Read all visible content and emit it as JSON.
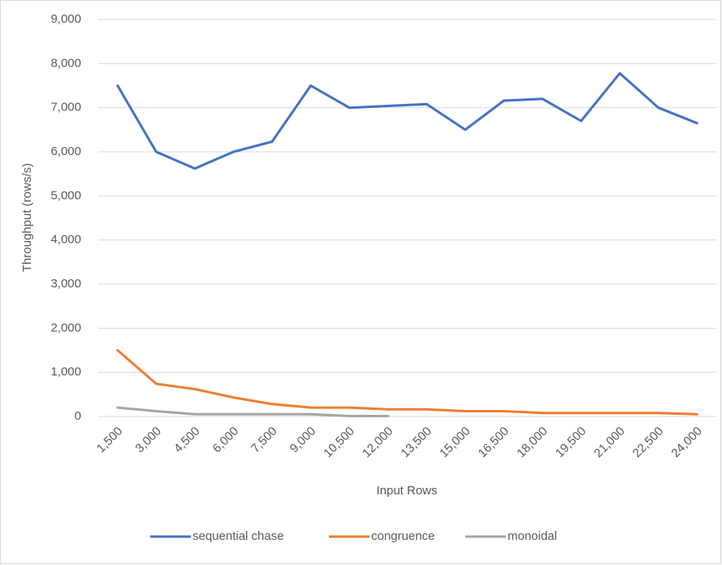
{
  "chart_data": {
    "type": "line",
    "categories": [
      "1,500",
      "3,000",
      "4,500",
      "6,000",
      "7,500",
      "9,000",
      "10,500",
      "12,000",
      "13,500",
      "15,000",
      "16,500",
      "18,000",
      "19,500",
      "21,000",
      "22,500",
      "24,000"
    ],
    "series": [
      {
        "name": "sequential chase",
        "color": "#4472c4",
        "values": [
          7500,
          6000,
          5620,
          6000,
          6230,
          7500,
          7000,
          7040,
          7080,
          6500,
          7160,
          7200,
          6700,
          7780,
          7000,
          6650
        ]
      },
      {
        "name": "congruence",
        "color": "#ed7d31",
        "values": [
          1500,
          740,
          620,
          430,
          280,
          200,
          200,
          160,
          160,
          120,
          120,
          80,
          80,
          80,
          80,
          50
        ]
      },
      {
        "name": "monoidal",
        "color": "#a5a5a5",
        "values": [
          200,
          120,
          50,
          50,
          50,
          50,
          10,
          10,
          null,
          null,
          null,
          null,
          null,
          null,
          null,
          null
        ]
      }
    ],
    "x_label": "Input Rows",
    "y_label": "Throughput (rows/s)",
    "ylim": [
      0,
      9000
    ],
    "yticks": [
      0,
      {
        "value": 1000,
        "label": "1,000"
      },
      {
        "value": 2000,
        "label": "2,000"
      },
      {
        "value": 3000,
        "label": "3,000"
      },
      {
        "value": 4000,
        "label": "4,000"
      },
      {
        "value": 5000,
        "label": "5,000"
      },
      {
        "value": 6000,
        "label": "6,000"
      },
      {
        "value": 7000,
        "label": "7,000"
      },
      {
        "value": 8000,
        "label": "8,000"
      },
      {
        "value": 9000,
        "label": "9,000"
      }
    ],
    "grid": true,
    "legend": "bottom"
  }
}
